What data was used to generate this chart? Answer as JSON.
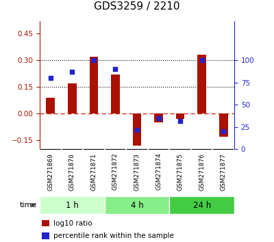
{
  "title": "GDS3259 / 2210",
  "samples": [
    "GSM271869",
    "GSM271870",
    "GSM271871",
    "GSM271872",
    "GSM271873",
    "GSM271874",
    "GSM271875",
    "GSM271876",
    "GSM271877"
  ],
  "log10_ratio": [
    0.09,
    0.17,
    0.32,
    0.22,
    -0.18,
    -0.05,
    -0.03,
    0.33,
    -0.13
  ],
  "percentile_rank": [
    80,
    87,
    100,
    90,
    22,
    35,
    32,
    100,
    20
  ],
  "time_groups": [
    {
      "label": "1 h",
      "start": 0,
      "end": 3,
      "color": "#ccffcc"
    },
    {
      "label": "4 h",
      "start": 3,
      "end": 6,
      "color": "#88ee88"
    },
    {
      "label": "24 h",
      "start": 6,
      "end": 9,
      "color": "#44cc44"
    }
  ],
  "ylim_left": [
    -0.2,
    0.52
  ],
  "ylim_right": [
    0,
    144
  ],
  "yticks_left": [
    -0.15,
    0.0,
    0.15,
    0.3,
    0.45
  ],
  "yticks_right": [
    0,
    25,
    50,
    75,
    100
  ],
  "hlines": [
    0.15,
    0.3
  ],
  "bar_color": "#aa1100",
  "dot_color": "#2222cc",
  "zero_line_color": "#cc2200",
  "background_color": "#ffffff",
  "plot_bg": "#ffffff",
  "gray_cell": "#cccccc",
  "title_fontsize": 11,
  "tick_fontsize": 7.5,
  "bar_width": 0.4
}
